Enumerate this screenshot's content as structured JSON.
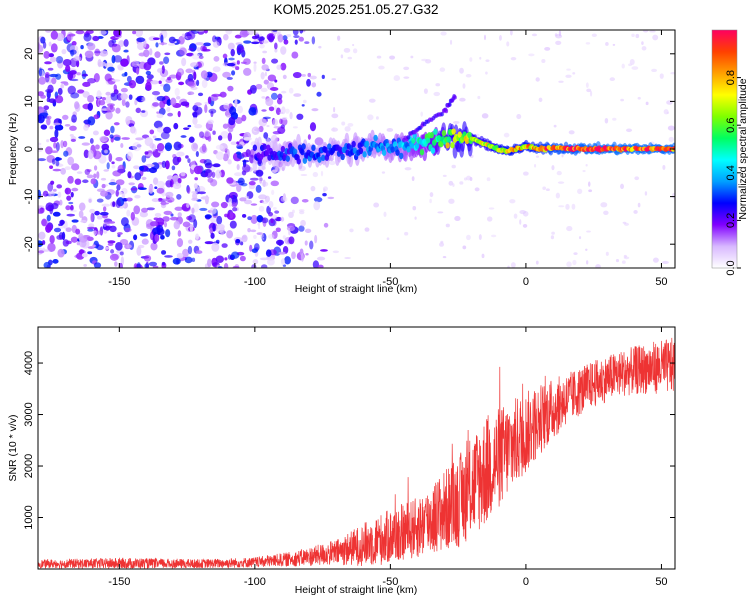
{
  "title": "KOM5.2025.251.05.27.G32",
  "chart_data": [
    {
      "type": "heatmap",
      "name": "spectrogram",
      "xlabel": "Height of straight line (km)",
      "ylabel": "Frequency (Hz)",
      "xlim": [
        -180,
        55
      ],
      "ylim": [
        -25,
        25
      ],
      "xticks": [
        -150,
        -100,
        -50,
        0,
        50
      ],
      "yticks": [
        -20,
        -10,
        0,
        10,
        20
      ],
      "colorbar": {
        "label": "Normalized spectral amplitude",
        "range": [
          0.0,
          1.0
        ],
        "ticks": [
          0.0,
          0.2,
          0.4,
          0.6,
          0.8
        ],
        "tick_labels": [
          "0.0",
          "0.2",
          "0.4",
          "0.6",
          "0.8"
        ],
        "colors": [
          "#ffffff",
          "#d8b8ff",
          "#8000ff",
          "#0000ff",
          "#00a0ff",
          "#00ffff",
          "#00ff60",
          "#80ff00",
          "#ffff00",
          "#ffa000",
          "#ff4000",
          "#ff0060"
        ]
      },
      "noise_region": {
        "x_range": [
          -180,
          -100
        ],
        "freq_range": [
          -25,
          25
        ],
        "level": 0.12
      },
      "ridge": [
        {
          "x": -100,
          "f": -1.0,
          "a": 0.25
        },
        {
          "x": -85,
          "f": -1.0,
          "a": 0.3
        },
        {
          "x": -70,
          "f": -0.5,
          "a": 0.3
        },
        {
          "x": -55,
          "f": 0.5,
          "a": 0.35
        },
        {
          "x": -45,
          "f": 0.5,
          "a": 0.4
        },
        {
          "x": -35,
          "f": 1.5,
          "a": 0.55
        },
        {
          "x": -28,
          "f": 2.5,
          "a": 0.7
        },
        {
          "x": -22,
          "f": 2.5,
          "a": 0.7
        },
        {
          "x": -15,
          "f": 1.0,
          "a": 0.7
        },
        {
          "x": -8,
          "f": -0.5,
          "a": 0.8
        },
        {
          "x": 0,
          "f": 0.5,
          "a": 0.8
        },
        {
          "x": 5,
          "f": 0.0,
          "a": 0.85
        },
        {
          "x": 10,
          "f": 0.2,
          "a": 0.9
        },
        {
          "x": 25,
          "f": 0.0,
          "a": 0.95
        },
        {
          "x": 40,
          "f": 0.0,
          "a": 0.95
        },
        {
          "x": 55,
          "f": 0.0,
          "a": 0.95
        }
      ],
      "side_branch": [
        {
          "x": -45,
          "f": 2.0
        },
        {
          "x": -38,
          "f": 5.0
        },
        {
          "x": -30,
          "f": 8.0
        },
        {
          "x": -26,
          "f": 11.0
        }
      ]
    },
    {
      "type": "line",
      "name": "snr",
      "xlabel": "Height of straight line (km)",
      "ylabel": "SNR (10 * v/v)",
      "xlim": [
        -180,
        55
      ],
      "ylim": [
        0,
        4700
      ],
      "xticks": [
        -150,
        -100,
        -50,
        0,
        50
      ],
      "yticks": [
        1000,
        2000,
        3000,
        4000
      ],
      "series": [
        {
          "name": "SNR",
          "color": "#ee3333",
          "envelope": [
            {
              "x": -180,
              "mean": 100,
              "spread": 80
            },
            {
              "x": -150,
              "mean": 110,
              "spread": 110
            },
            {
              "x": -120,
              "mean": 100,
              "spread": 90
            },
            {
              "x": -100,
              "mean": 130,
              "spread": 100
            },
            {
              "x": -85,
              "mean": 200,
              "spread": 150
            },
            {
              "x": -70,
              "mean": 320,
              "spread": 250
            },
            {
              "x": -55,
              "mean": 550,
              "spread": 500
            },
            {
              "x": -40,
              "mean": 800,
              "spread": 600
            },
            {
              "x": -25,
              "mean": 1300,
              "spread": 900
            },
            {
              "x": -15,
              "mean": 1900,
              "spread": 1100
            },
            {
              "x": -5,
              "mean": 2400,
              "spread": 900
            },
            {
              "x": 5,
              "mean": 2900,
              "spread": 700
            },
            {
              "x": 15,
              "mean": 3300,
              "spread": 500
            },
            {
              "x": 25,
              "mean": 3600,
              "spread": 450
            },
            {
              "x": 35,
              "mean": 3800,
              "spread": 450
            },
            {
              "x": 45,
              "mean": 3900,
              "spread": 500
            },
            {
              "x": 55,
              "mean": 3950,
              "spread": 550
            }
          ]
        }
      ]
    }
  ]
}
